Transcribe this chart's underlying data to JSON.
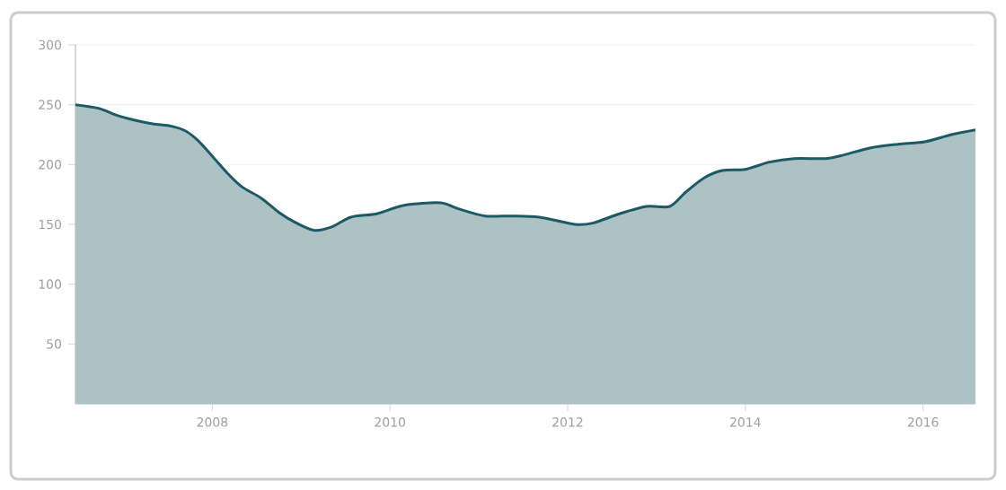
{
  "chart_data": {
    "type": "area",
    "x": [
      2006.46,
      2006.72,
      2006.93,
      2007.13,
      2007.33,
      2007.54,
      2007.7,
      2007.84,
      2008.0,
      2008.18,
      2008.34,
      2008.55,
      2008.75,
      2008.95,
      2009.15,
      2009.35,
      2009.56,
      2009.86,
      2010.16,
      2010.57,
      2010.77,
      2011.07,
      2011.37,
      2011.68,
      2012.08,
      2012.28,
      2012.59,
      2012.89,
      2013.15,
      2013.33,
      2013.54,
      2013.74,
      2014.0,
      2014.27,
      2014.55,
      2014.91,
      2015.11,
      2015.41,
      2015.72,
      2016.02,
      2016.32,
      2016.59
    ],
    "series": [
      {
        "color": "#1e5a63",
        "values": [
          250,
          247,
          241,
          237,
          234,
          232,
          228,
          220,
          207,
          192,
          181,
          172,
          160,
          151,
          145,
          148,
          156,
          159,
          166,
          168,
          163,
          157,
          157,
          156,
          150,
          151,
          159,
          165,
          165,
          177,
          189,
          195,
          196,
          202,
          205,
          205,
          208,
          214,
          217,
          219,
          225,
          229
        ]
      }
    ],
    "xlim": [
      2006.46,
      2016.59
    ],
    "ylim": [
      0,
      300
    ],
    "xticks": [
      2008,
      2010,
      2012,
      2014,
      2016
    ],
    "yticks": [
      50,
      100,
      150,
      200,
      250,
      300
    ],
    "grid": "y"
  }
}
